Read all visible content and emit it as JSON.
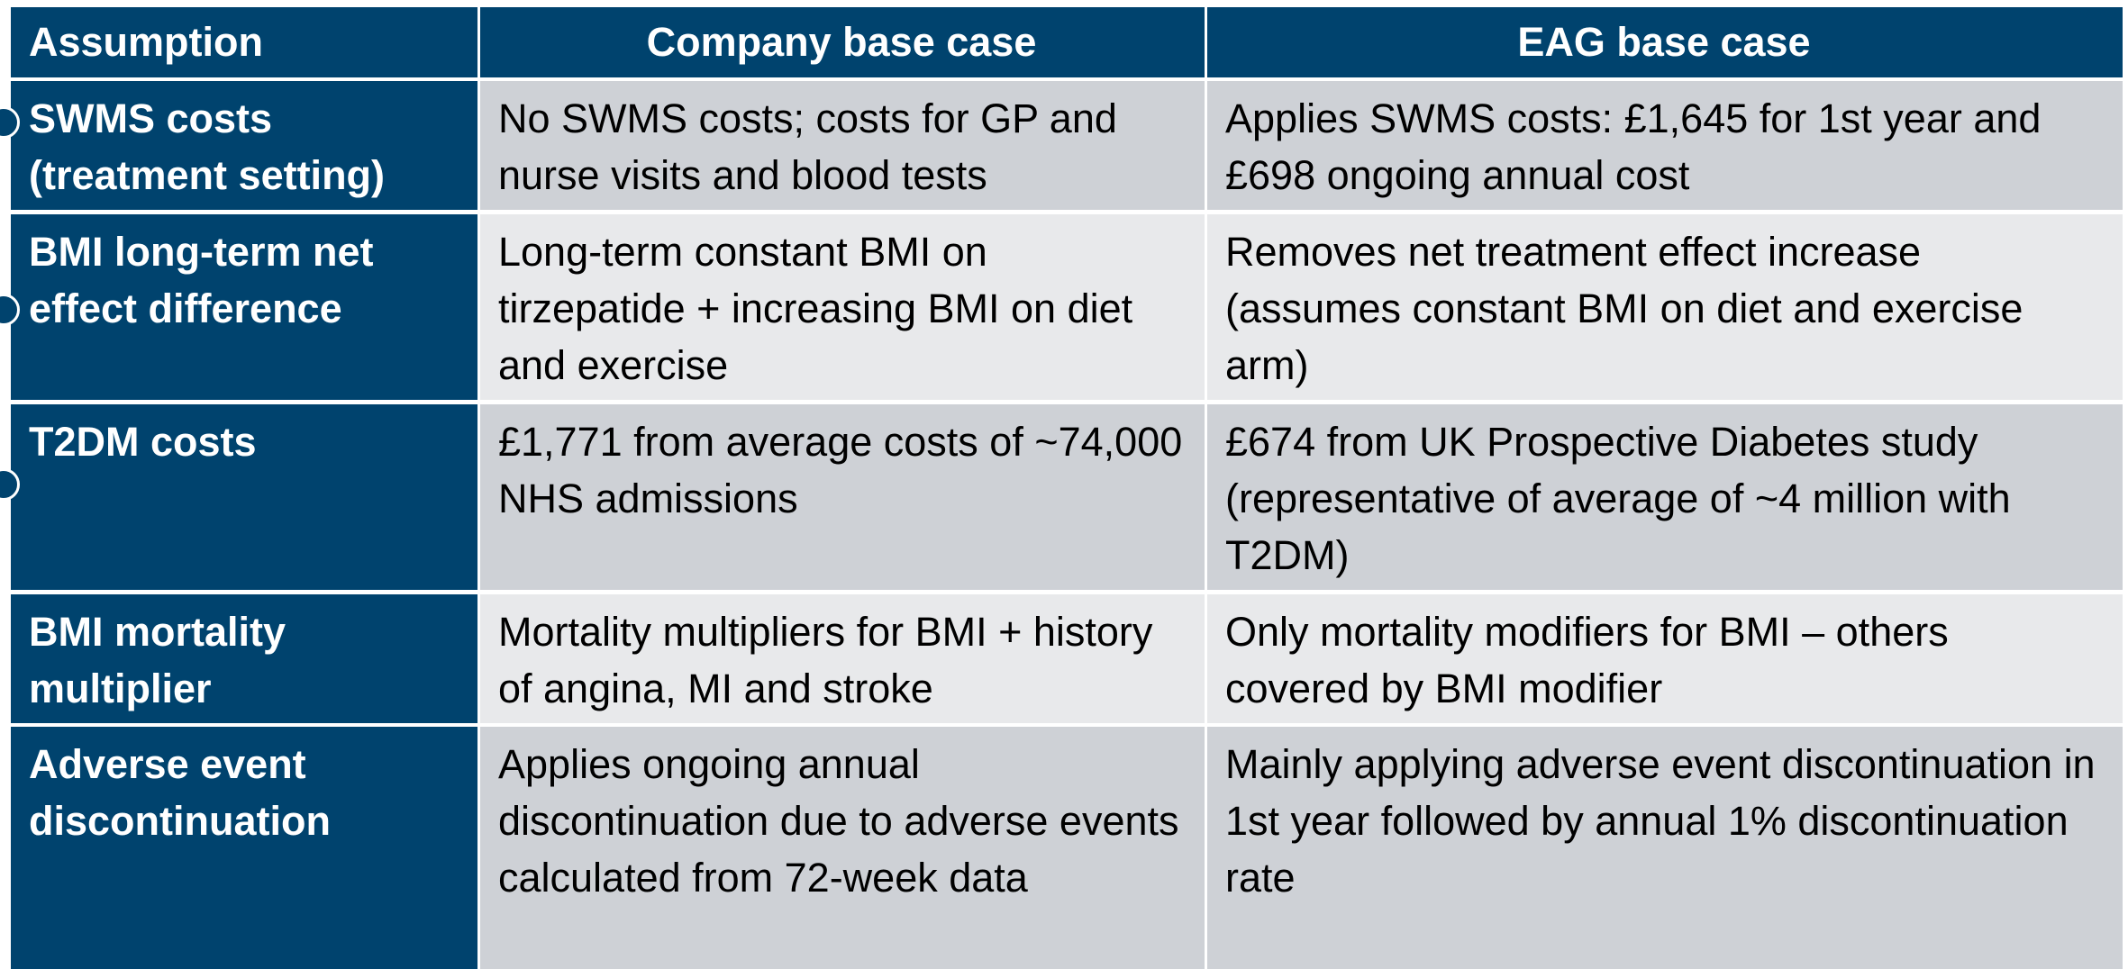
{
  "table": {
    "header": [
      "Assumption",
      "Company base case",
      "EAG base case"
    ],
    "rows": [
      [
        "SWMS costs (treatment setting)",
        "No SWMS costs; costs for GP and nurse visits and blood tests",
        "Applies SWMS costs: £1,645 for 1st year and £698 ongoing annual cost"
      ],
      [
        "BMI long-term net effect difference",
        "Long-term constant BMI on tirzepatide + increasing BMI on diet and exercise",
        "Removes net treatment effect increase (assumes constant BMI on diet and exercise arm)"
      ],
      [
        "T2DM costs",
        "£1,771 from average costs of ~74,000 NHS admissions",
        "£674 from UK Prospective Diabetes study (representative of average of ~4 million with T2DM)"
      ],
      [
        "BMI mortality multiplier",
        "Mortality multipliers for BMI + history of angina, MI and stroke",
        "Only mortality modifiers for BMI – others covered by BMI modifier"
      ],
      [
        "Adverse event discontinuation",
        "Applies ongoing annual discontinuation due to adverse events calculated from 72-week data",
        "Mainly applying adverse event discontinuation in 1st year followed by annual 1% discontinuation rate"
      ]
    ]
  }
}
